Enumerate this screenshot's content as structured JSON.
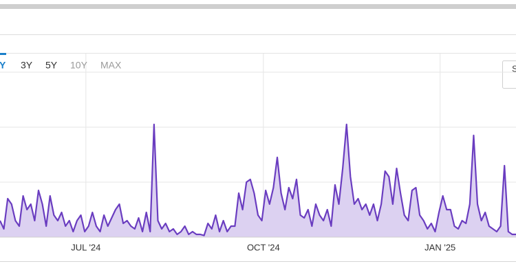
{
  "range_buttons": [
    {
      "label": "Y",
      "active": true
    },
    {
      "label": "3Y",
      "active": false
    },
    {
      "label": "5Y",
      "active": false
    },
    {
      "label": "10Y",
      "active": false
    },
    {
      "label": "MAX",
      "active": false
    }
  ],
  "side_button": "S",
  "chart_data": {
    "type": "area",
    "color": "#6a3dc0",
    "fill": "#dcd1f1",
    "xlim": [
      0,
      134
    ],
    "ylim": [
      0,
      3
    ],
    "grid": true,
    "ygrid": [
      1,
      2,
      3
    ],
    "xticks": [
      {
        "value": 22.3,
        "label": "JUL '24"
      },
      {
        "value": 68.4,
        "label": "OCT '24"
      },
      {
        "value": 114.3,
        "label": "JAN '25"
      }
    ],
    "values": [
      0.3,
      0.15,
      0.7,
      0.6,
      0.3,
      0.2,
      0.75,
      0.5,
      0.6,
      0.3,
      0.85,
      0.6,
      0.2,
      0.75,
      0.4,
      0.3,
      0.45,
      0.2,
      0.3,
      0.1,
      0.3,
      0.4,
      0.1,
      0.2,
      0.45,
      0.2,
      0.1,
      0.4,
      0.2,
      0.35,
      0.5,
      0.6,
      0.25,
      0.3,
      0.2,
      0.15,
      0.35,
      0.1,
      0.45,
      0.1,
      2.05,
      0.3,
      0.15,
      0.25,
      0.1,
      0.15,
      0.05,
      0.1,
      0.2,
      0.05,
      0.1,
      0.05,
      0.05,
      0.03,
      0.25,
      0.15,
      0.4,
      0.1,
      0.3,
      0.1,
      0.2,
      0.2,
      0.8,
      0.5,
      1.0,
      1.05,
      0.8,
      0.4,
      0.3,
      0.85,
      0.6,
      0.9,
      1.45,
      0.8,
      0.5,
      0.9,
      0.7,
      1.05,
      0.4,
      0.35,
      0.5,
      0.2,
      0.6,
      0.4,
      0.3,
      0.5,
      0.2,
      0.95,
      0.6,
      1.25,
      2.05,
      1.1,
      0.6,
      0.7,
      0.5,
      0.6,
      0.4,
      0.6,
      0.3,
      0.6,
      1.2,
      1.1,
      0.6,
      1.25,
      0.8,
      0.4,
      0.3,
      0.85,
      0.9,
      0.4,
      0.3,
      0.15,
      0.25,
      0.1,
      0.45,
      0.75,
      0.5,
      0.5,
      0.2,
      0.15,
      0.3,
      0.25,
      0.6,
      1.85,
      0.6,
      0.3,
      0.45,
      0.2,
      0.15,
      0.1,
      0.2,
      1.3,
      0.1,
      0.05,
      0.05
    ]
  }
}
